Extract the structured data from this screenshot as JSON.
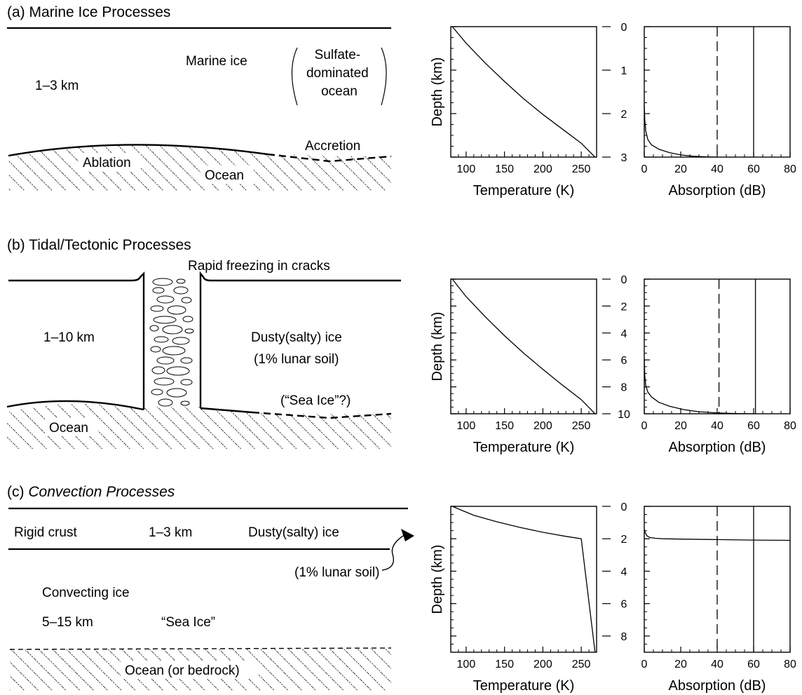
{
  "panels": [
    {
      "heading_prefix": "(a)",
      "heading": "Marine Ice Processes",
      "labels": {
        "thickness": "1–3 km",
        "ice": "Marine ice",
        "ocean_type": [
          "Sulfate-",
          "dominated",
          "ocean"
        ],
        "ablation": "Ablation",
        "ocean": "Ocean",
        "accretion": "Accretion"
      }
    },
    {
      "heading_prefix": "(b)",
      "heading": "Tidal/Tectonic Processes",
      "labels": {
        "freezing": "Rapid freezing in cracks",
        "thickness": "1–10 km",
        "ice": "Dusty(salty) ice",
        "soil": "(1% lunar soil)",
        "sea_ice": "(“Sea Ice”?)",
        "ocean": "Ocean"
      }
    },
    {
      "heading_prefix": "(c)",
      "heading": "Convection Processes",
      "labels": {
        "crust": "Rigid crust",
        "thickness": "1–3 km",
        "ice": "Dusty(salty) ice",
        "soil": "(1% lunar soil)",
        "convecting": "Convecting ice",
        "conv_thickness": "5–15 km",
        "sea_ice": "“Sea Ice”",
        "ocean": "Ocean (or bedrock)"
      }
    }
  ],
  "chart_data": [
    {
      "type": "line",
      "panel": "a",
      "xlabel": "Temperature (K)",
      "ylabel": "Depth (km)",
      "xlim": [
        80,
        270
      ],
      "ylim": [
        0,
        3
      ],
      "y_inverted": true,
      "xticks": [
        100,
        150,
        200,
        250
      ],
      "yticks": [
        0,
        1,
        2,
        3
      ],
      "series": [
        {
          "x": [
            82,
            100,
            125,
            150,
            175,
            200,
            225,
            250,
            268
          ],
          "y": [
            0,
            0.38,
            0.84,
            1.26,
            1.66,
            2.02,
            2.35,
            2.68,
            3.0
          ]
        }
      ]
    },
    {
      "type": "line",
      "panel": "a",
      "xlabel": "Absorption (dB)",
      "xlim": [
        0,
        80
      ],
      "ylim": [
        0,
        3
      ],
      "y_inverted": true,
      "xticks": [
        0,
        20,
        40,
        60,
        80
      ],
      "yticks": [
        0,
        1,
        2,
        3
      ],
      "series": [
        {
          "x": [
            0,
            0.3,
            0.8,
            2,
            4,
            8,
            14,
            20,
            27,
            34,
            40
          ],
          "y": [
            1.8,
            2.15,
            2.4,
            2.6,
            2.72,
            2.82,
            2.9,
            2.95,
            2.98,
            2.995,
            3.0
          ]
        },
        {
          "x": [
            40,
            40
          ],
          "y": [
            0,
            3
          ],
          "dashed": true
        },
        {
          "x": [
            60,
            60
          ],
          "y": [
            0,
            3
          ]
        }
      ]
    },
    {
      "type": "line",
      "panel": "b",
      "xlabel": "Temperature (K)",
      "ylabel": "Depth (km)",
      "xlim": [
        80,
        270
      ],
      "ylim": [
        0,
        10
      ],
      "y_inverted": true,
      "xticks": [
        100,
        150,
        200,
        250
      ],
      "yticks": [
        0,
        2,
        4,
        6,
        8,
        10
      ],
      "series": [
        {
          "x": [
            82,
            100,
            125,
            150,
            175,
            200,
            225,
            250,
            268
          ],
          "y": [
            0,
            1.3,
            2.8,
            4.2,
            5.5,
            6.7,
            7.85,
            8.95,
            10.0
          ]
        }
      ]
    },
    {
      "type": "line",
      "panel": "b",
      "xlabel": "Absorption (dB)",
      "xlim": [
        0,
        80
      ],
      "ylim": [
        0,
        10
      ],
      "y_inverted": true,
      "xticks": [
        0,
        20,
        40,
        60,
        80
      ],
      "yticks": [
        0,
        2,
        4,
        6,
        8,
        10
      ],
      "series": [
        {
          "x": [
            0,
            0.3,
            0.8,
            2,
            4,
            8,
            14,
            22,
            30,
            40,
            50,
            60
          ],
          "y": [
            6.0,
            7.2,
            7.9,
            8.4,
            8.75,
            9.15,
            9.45,
            9.7,
            9.85,
            9.94,
            9.98,
            10.0
          ]
        },
        {
          "x": [
            41,
            41
          ],
          "y": [
            0,
            10
          ],
          "dashed": true
        },
        {
          "x": [
            61,
            61
          ],
          "y": [
            0,
            10
          ]
        }
      ]
    },
    {
      "type": "line",
      "panel": "c",
      "xlabel": "Temperature (K)",
      "ylabel": "Depth (km)",
      "xlim": [
        80,
        270
      ],
      "ylim": [
        0,
        9
      ],
      "y_inverted": true,
      "xticks": [
        100,
        150,
        200,
        250
      ],
      "yticks": [
        0,
        2,
        4,
        6,
        8
      ],
      "series": [
        {
          "x": [
            82,
            110,
            140,
            170,
            200,
            230,
            250,
            268
          ],
          "y": [
            0,
            0.55,
            0.95,
            1.3,
            1.6,
            1.85,
            2.0,
            9.0
          ]
        }
      ]
    },
    {
      "type": "line",
      "panel": "c",
      "xlabel": "Absorption (dB)",
      "xlim": [
        0,
        80
      ],
      "ylim": [
        0,
        9
      ],
      "y_inverted": true,
      "xticks": [
        0,
        20,
        40,
        60,
        80
      ],
      "yticks": [
        0,
        2,
        4,
        6,
        8
      ],
      "series": [
        {
          "x": [
            0,
            0.6,
            1.5,
            3,
            6,
            10,
            20,
            40,
            60,
            80
          ],
          "y": [
            1.4,
            1.65,
            1.82,
            1.92,
            1.97,
            2.0,
            2.02,
            2.05,
            2.08,
            2.1
          ]
        },
        {
          "x": [
            40,
            40
          ],
          "y": [
            0,
            9
          ],
          "dashed": true
        },
        {
          "x": [
            60,
            60
          ],
          "y": [
            0,
            9
          ]
        }
      ]
    }
  ]
}
